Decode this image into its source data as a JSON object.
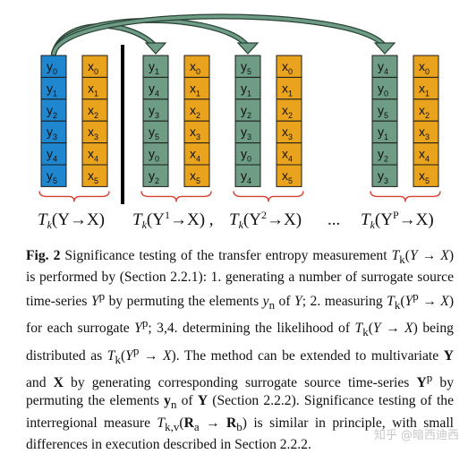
{
  "colors": {
    "blue": "#1f87d0",
    "green": "#6e9c84",
    "orange": "#eaa31d",
    "bracket": "#d84030",
    "arrow_fill": "#6e9c84",
    "arrow_stroke": "#2a4236"
  },
  "groups": [
    {
      "y_color": "blue",
      "y": [
        {
          "b": "y",
          "s": "0"
        },
        {
          "b": "y",
          "s": "1"
        },
        {
          "b": "y",
          "s": "2"
        },
        {
          "b": "y",
          "s": "3"
        },
        {
          "b": "y",
          "s": "4"
        },
        {
          "b": "y",
          "s": "5"
        }
      ],
      "x": [
        {
          "b": "x",
          "s": "0"
        },
        {
          "b": "x",
          "s": "1"
        },
        {
          "b": "x",
          "s": "2"
        },
        {
          "b": "x",
          "s": "3"
        },
        {
          "b": "x",
          "s": "4"
        },
        {
          "b": "x",
          "s": "5"
        }
      ],
      "label": {
        "pre": "T",
        "sub": "k",
        "post": "(Y→X)"
      }
    },
    {
      "y_color": "green",
      "y": [
        {
          "b": "y",
          "s": "1"
        },
        {
          "b": "y",
          "s": "4"
        },
        {
          "b": "y",
          "s": "3"
        },
        {
          "b": "y",
          "s": "5"
        },
        {
          "b": "y",
          "s": "0"
        },
        {
          "b": "y",
          "s": "2"
        }
      ],
      "x": [
        {
          "b": "x",
          "s": "0"
        },
        {
          "b": "x",
          "s": "1"
        },
        {
          "b": "x",
          "s": "2"
        },
        {
          "b": "x",
          "s": "3"
        },
        {
          "b": "x",
          "s": "4"
        },
        {
          "b": "x",
          "s": "5"
        }
      ],
      "label": {
        "pre": "T",
        "sub": "k",
        "post": "(Y",
        "sup": "1",
        "post2": "→X) ,"
      }
    },
    {
      "y_color": "green",
      "y": [
        {
          "b": "y",
          "s": "5"
        },
        {
          "b": "y",
          "s": "1"
        },
        {
          "b": "y",
          "s": "2"
        },
        {
          "b": "y",
          "s": "3"
        },
        {
          "b": "y",
          "s": "0"
        },
        {
          "b": "y",
          "s": "4"
        }
      ],
      "x": [
        {
          "b": "x",
          "s": "0"
        },
        {
          "b": "x",
          "s": "1"
        },
        {
          "b": "x",
          "s": "2"
        },
        {
          "b": "x",
          "s": "3"
        },
        {
          "b": "x",
          "s": "4"
        },
        {
          "b": "x",
          "s": "5"
        }
      ],
      "label": {
        "pre": "T",
        "sub": "k",
        "post": "(Y",
        "sup": "2",
        "post2": "→X)"
      }
    },
    {
      "y_color": "green",
      "y": [
        {
          "b": "y",
          "s": "4"
        },
        {
          "b": "y",
          "s": "0"
        },
        {
          "b": "y",
          "s": "5"
        },
        {
          "b": "y",
          "s": "1"
        },
        {
          "b": "y",
          "s": "2"
        },
        {
          "b": "y",
          "s": "3"
        }
      ],
      "x": [
        {
          "b": "x",
          "s": "0"
        },
        {
          "b": "x",
          "s": "1"
        },
        {
          "b": "x",
          "s": "2"
        },
        {
          "b": "x",
          "s": "3"
        },
        {
          "b": "x",
          "s": "4"
        },
        {
          "b": "x",
          "s": "5"
        }
      ],
      "label": {
        "pre": "T",
        "sub": "k",
        "post": "(Y",
        "sup": "P",
        "post2": "→X)"
      }
    }
  ],
  "ellipsis": "...",
  "caption": {
    "fig_label": "Fig. 2",
    "html": "Significance testing of the transfer entropy measurement <i>T</i><sub>k</sub>(<i>Y</i> → <i>X</i>) is performed by (Section 2.2.1): 1. generating a number of surrogate source time-series <i>Y</i><sup>p</sup> by permuting the elements <i>y</i><sub>n</sub> of <i>Y</i>; 2. measuring <i>T</i><sub>k</sub>(<i>Y</i><sup>p</sup> → <i>X</i>) for each surrogate <i>Y</i><sup>p</sup>; 3,4. determining the likelihood of <i>T</i><sub>k</sub>(<i>Y</i> → <i>X</i>) being distributed as <i>T</i><sub>k</sub>(<i>Y</i><sup>p</sup> → <i>X</i>). The method can be extended to multivariate <b>Y</b> and <b>X</b> by generating corresponding surrogate source time-series <b>Y</b><sup>p</sup> by permuting the elements <b>y</b><sub>n</sub> of <b>Y</b> (Section 2.2.2). Significance testing of the interregional measure <i>T</i><sub>k,v</sub>(<b>R</b><sub>a</sub> → <b>R</b><sub>b</sub>) is similar in principle, with small differences in execution described in Section 2.2.2."
  },
  "watermark": "知乎 @暗西迪西"
}
